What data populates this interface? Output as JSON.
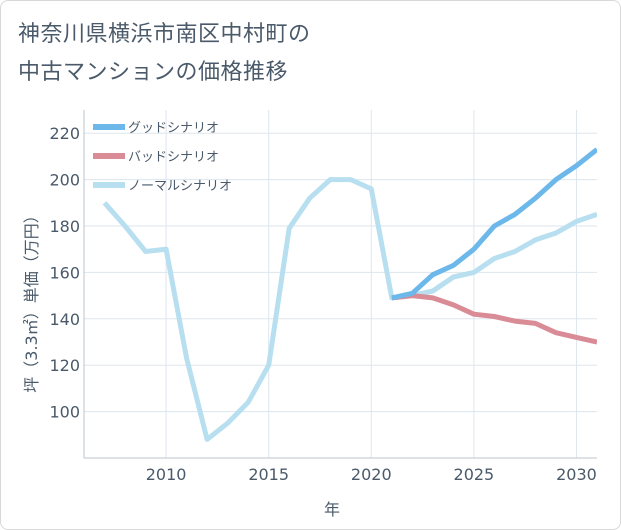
{
  "title_line1": "神奈川県横浜市南区中村町の",
  "title_line2": "中古マンションの価格推移",
  "chart_data": {
    "type": "line",
    "xlabel": "年",
    "ylabel": "坪（3.3㎡）単価（万円）",
    "xlim": [
      2006,
      2031
    ],
    "ylim": [
      80,
      230
    ],
    "x_ticks": [
      2010,
      2015,
      2020,
      2025,
      2030
    ],
    "y_ticks": [
      100,
      120,
      140,
      160,
      180,
      200,
      220
    ],
    "grid": true,
    "legend_position": "top-left",
    "series": [
      {
        "name": "グッドシナリオ",
        "color": "#6cb8ea",
        "x": [
          2021,
          2022,
          2023,
          2024,
          2025,
          2026,
          2027,
          2028,
          2029,
          2030,
          2031
        ],
        "values": [
          149,
          151,
          159,
          163,
          170,
          180,
          185,
          192,
          200,
          206,
          213
        ]
      },
      {
        "name": "バッドシナリオ",
        "color": "#d98c96",
        "x": [
          2021,
          2022,
          2023,
          2024,
          2025,
          2026,
          2027,
          2028,
          2029,
          2030,
          2031
        ],
        "values": [
          149,
          150,
          149,
          146,
          142,
          141,
          139,
          138,
          134,
          132,
          130
        ]
      },
      {
        "name": "ノーマルシナリオ",
        "color": "#b7dff0",
        "x": [
          2007,
          2008,
          2009,
          2010,
          2011,
          2012,
          2013,
          2014,
          2015,
          2016,
          2017,
          2018,
          2019,
          2020,
          2021,
          2022,
          2023,
          2024,
          2025,
          2026,
          2027,
          2028,
          2029,
          2030,
          2031
        ],
        "values": [
          190,
          180,
          169,
          170,
          123,
          88,
          95,
          104,
          120,
          179,
          192,
          200,
          200,
          196,
          149,
          150,
          152,
          158,
          160,
          166,
          169,
          174,
          177,
          182,
          185
        ]
      }
    ]
  }
}
